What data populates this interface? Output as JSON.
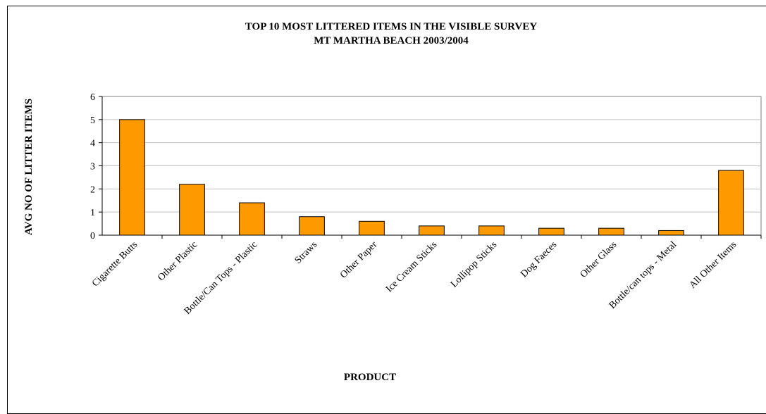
{
  "chart_data": {
    "type": "bar",
    "title": "TOP 10 MOST LITTERED ITEMS IN THE VISIBLE SURVEY",
    "subtitle": "MT MARTHA BEACH 2003/2004",
    "xlabel": "PRODUCT",
    "ylabel": "AVG NO OF LITTER ITEMS",
    "ylim": [
      0,
      6
    ],
    "yticks": [
      "0",
      "1",
      "2",
      "3",
      "4",
      "5",
      "6"
    ],
    "grid": true,
    "legend": "none",
    "categories": [
      "Cigarette Butts",
      "Other Plastic",
      "Bottle/Can Tops - Plastic",
      "Straws",
      "Other Paper",
      "Ice Cream Sticks",
      "Lollipop Sticks",
      "Dog Faeces",
      "Other Glass",
      "Bottle/can tops - Metal",
      "All Other Items"
    ],
    "values": [
      5.0,
      2.2,
      1.4,
      0.8,
      0.6,
      0.4,
      0.4,
      0.3,
      0.3,
      0.2,
      2.8
    ],
    "bar_color": "#FF9900",
    "bar_stroke": "#000000",
    "grid_color": "#c0c0c0"
  }
}
